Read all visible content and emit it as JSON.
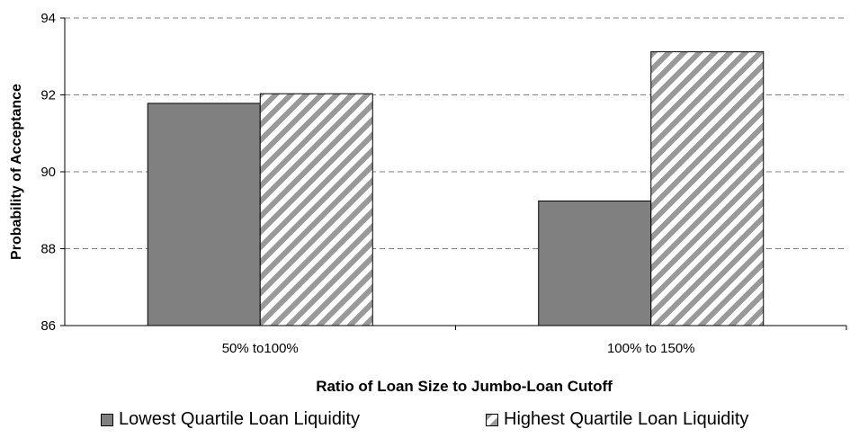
{
  "chart_data": {
    "type": "bar",
    "categories": [
      "50% to100%",
      "100% to 150%"
    ],
    "series": [
      {
        "name": "Lowest Quartile Loan Liquidity",
        "values": [
          91.78,
          89.24
        ],
        "fill": "#808080",
        "pattern": "solid"
      },
      {
        "name": "Highest Quartile Loan Liquidity",
        "values": [
          92.03,
          93.12
        ],
        "fill": "#ffffff",
        "pattern": "diagonal-stripes",
        "stripe_color": "#999999"
      }
    ],
    "xlabel": "Ratio of Loan Size to Jumbo-Loan Cutoff",
    "ylabel": "Probability of Acceptance",
    "ylim": [
      86,
      94
    ],
    "yticks": [
      86,
      88,
      90,
      92,
      94
    ],
    "grid": "horizontal-dashed",
    "legend_position": "bottom"
  }
}
